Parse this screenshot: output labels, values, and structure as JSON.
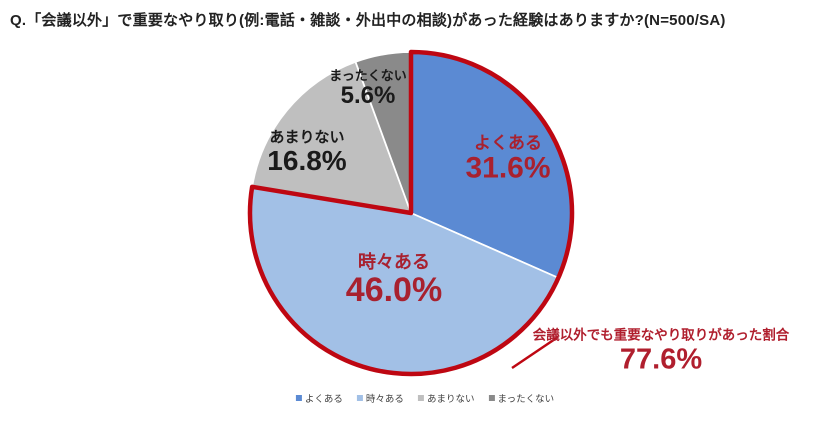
{
  "title": "Q.「会議以外」で重要なやり取り(例:電話・雑談・外出中の相談)があった経験はありますか?(N=500/SA)",
  "chart_data": {
    "type": "pie",
    "start_angle": "12-o'clock",
    "direction": "clockwise",
    "legend_position": "bottom",
    "background": "#FFFFFF",
    "slices": [
      {
        "name": "よくある",
        "value": 31.6,
        "pct_label": "31.6%",
        "color": "#5B8AD3",
        "text_color": "#A8212F"
      },
      {
        "name": "時々ある",
        "value": 46.0,
        "pct_label": "46.0%",
        "color": "#A2C0E6",
        "text_color": "#A8212F"
      },
      {
        "name": "あまりない",
        "value": 16.8,
        "pct_label": "16.8%",
        "color": "#BFBFBF",
        "text_color": "#1A1A1A"
      },
      {
        "name": "まったくない",
        "value": 5.6,
        "pct_label": "5.6%",
        "color": "#8A8A8A",
        "text_color": "#1A1A1A"
      }
    ],
    "group_annotation": {
      "label": "会議以外でも重要なやり取りがあった割合",
      "value": 77.6,
      "pct_label": "77.6%",
      "covers": [
        "よくある",
        "時々ある"
      ],
      "outline_color": "#BE0712",
      "text_color": "#B01F2E"
    }
  }
}
